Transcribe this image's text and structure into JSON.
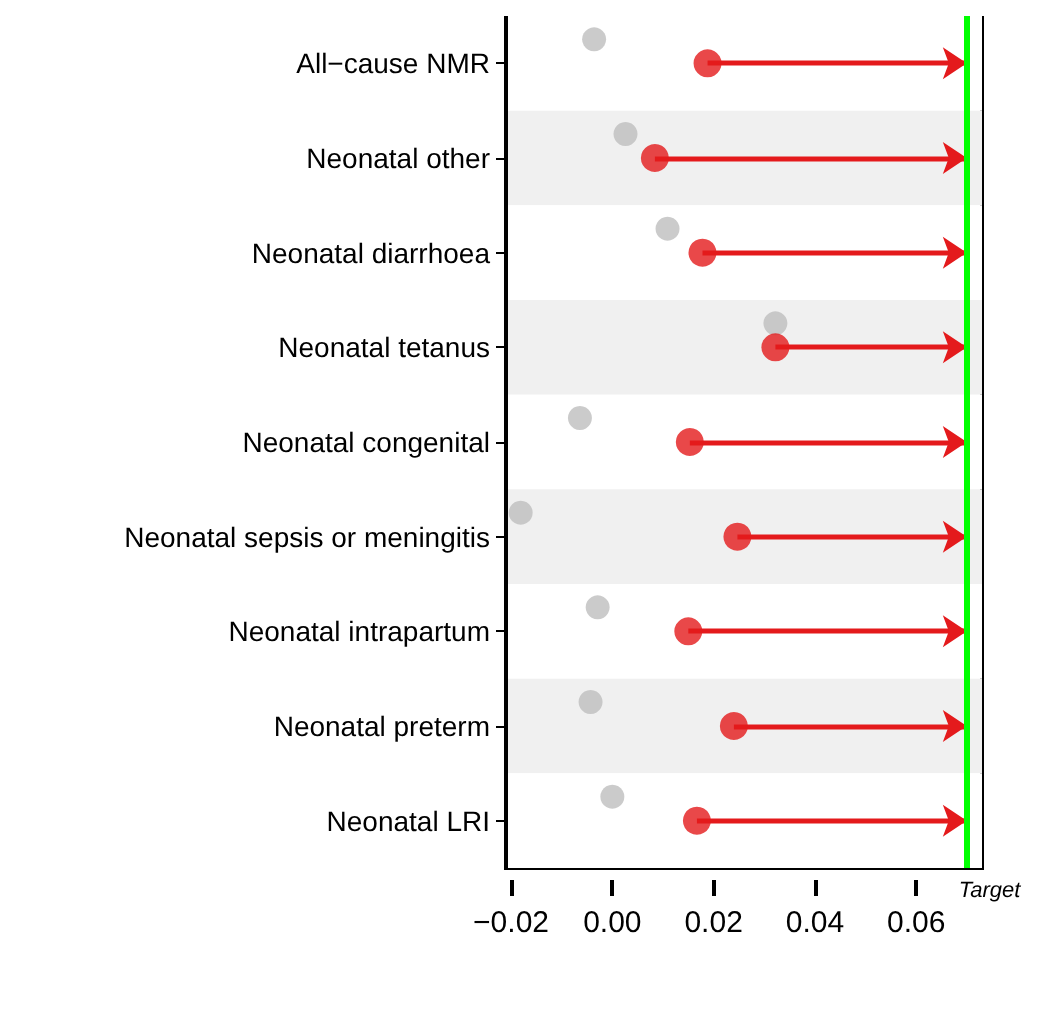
{
  "chart_data": {
    "type": "scatter",
    "orientation": "horizontal",
    "categories": [
      "All−cause NMR",
      "Neonatal other",
      "Neonatal diarrhoea",
      "Neonatal tetanus",
      "Neonatal congenital",
      "Neonatal sepsis or meningitis",
      "Neonatal intrapartum",
      "Neonatal preterm",
      "Neonatal LRI"
    ],
    "series": [
      {
        "color": "#bebebe",
        "values": [
          -0.0036,
          0.0026,
          0.0109,
          0.0322,
          -0.0064,
          -0.0181,
          -0.0029,
          -0.0043,
          0.0
        ]
      },
      {
        "color": "#e41a1c",
        "values": [
          0.0188,
          0.0084,
          0.0178,
          0.0322,
          0.0153,
          0.0247,
          0.015,
          0.024,
          0.0167
        ]
      }
    ],
    "xlim": [
      -0.021,
      0.073
    ],
    "xticks": [
      {
        "value": -0.02,
        "label": "−0.02"
      },
      {
        "value": 0,
        "label": "0.00"
      },
      {
        "value": 0.02,
        "label": "0.02"
      },
      {
        "value": 0.04,
        "label": "0.04"
      },
      {
        "value": 0.06,
        "label": "0.06"
      }
    ],
    "ref_lines": [
      {
        "axis": "x",
        "value": 0.07,
        "label": "Target",
        "color": "#00ff00"
      }
    ],
    "marker": "circle"
  }
}
